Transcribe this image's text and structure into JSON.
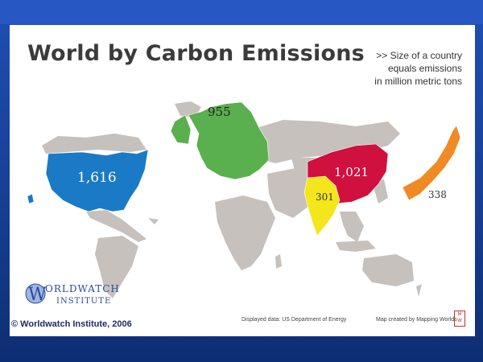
{
  "title": "World by Carbon Emissions",
  "caption": {
    "line1": ">> Size of a country",
    "line2": "equals emissions",
    "line3": "in million metric tons"
  },
  "regions": {
    "usa": {
      "value": "1,616",
      "color": "#1a7ac6"
    },
    "europe": {
      "value": "955",
      "color": "#5aaf4e"
    },
    "china": {
      "value": "1,021",
      "color": "#d0103f"
    },
    "india": {
      "value": "301",
      "color": "#f4e61c"
    },
    "japan": {
      "value": "338",
      "color": "#f08a24"
    },
    "other_color": "#c6c1bd"
  },
  "logo": {
    "line1": "ORLDWATCH",
    "line2": "INSTITUTE",
    "initial": "W"
  },
  "footer": {
    "copyright": "© Worldwatch Institute, 2006",
    "source": "Displayed data: US Department of Energy",
    "credit": "Map created by Mapping Worlds",
    "badge": "M W"
  }
}
